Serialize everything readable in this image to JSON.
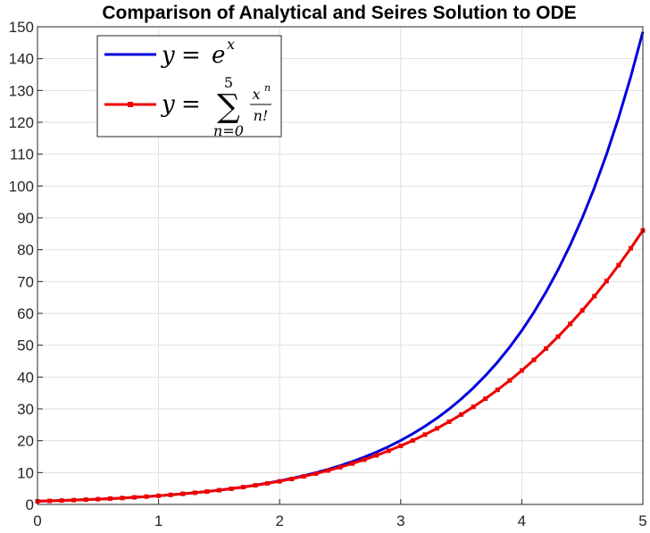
{
  "chart_data": {
    "type": "line",
    "title": "Comparison of Analytical and Seires Solution to ODE",
    "xlabel": "",
    "ylabel": "",
    "xlim": [
      0,
      5
    ],
    "ylim": [
      0,
      150
    ],
    "xticks": [
      0,
      1,
      2,
      3,
      4,
      5
    ],
    "yticks": [
      0,
      10,
      20,
      30,
      40,
      50,
      60,
      70,
      80,
      90,
      100,
      110,
      120,
      130,
      140,
      150
    ],
    "grid": true,
    "legend_position": "top-left",
    "x": [
      0,
      0.1,
      0.2,
      0.3,
      0.4,
      0.5,
      0.6,
      0.7,
      0.8,
      0.9,
      1.0,
      1.1,
      1.2,
      1.3,
      1.4,
      1.5,
      1.6,
      1.7,
      1.8,
      1.9,
      2.0,
      2.1,
      2.2,
      2.3,
      2.4,
      2.5,
      2.6,
      2.7,
      2.8,
      2.9,
      3.0,
      3.1,
      3.2,
      3.3,
      3.4,
      3.5,
      3.6,
      3.7,
      3.8,
      3.9,
      4.0,
      4.1,
      4.2,
      4.3,
      4.4,
      4.5,
      4.6,
      4.7,
      4.8,
      4.9,
      5.0
    ],
    "series": [
      {
        "legend": {
          "lhs": "y",
          "eq": "=",
          "base": "e",
          "exp": "x"
        },
        "color": "#0000dd",
        "marker": "none",
        "values": [
          1.0,
          1.105,
          1.221,
          1.35,
          1.492,
          1.649,
          1.822,
          2.014,
          2.226,
          2.46,
          2.718,
          3.004,
          3.32,
          3.669,
          4.055,
          4.482,
          4.953,
          5.474,
          6.05,
          6.686,
          7.389,
          8.166,
          9.025,
          9.974,
          11.023,
          12.182,
          13.464,
          14.88,
          16.445,
          18.174,
          20.086,
          22.198,
          24.533,
          27.113,
          29.964,
          33.115,
          36.598,
          40.447,
          44.701,
          49.402,
          54.598,
          60.34,
          66.686,
          73.7,
          81.451,
          90.017,
          99.484,
          109.947,
          121.51,
          134.29,
          148.413
        ]
      },
      {
        "legend": {
          "lhs": "y",
          "eq": "=",
          "upper": "5",
          "lower": "n=0",
          "num": "x",
          "num_exp": "n",
          "den": "n!"
        },
        "color": "#ee0000",
        "marker": "square",
        "values": [
          1.0,
          1.105,
          1.221,
          1.35,
          1.492,
          1.649,
          1.822,
          2.014,
          2.226,
          2.459,
          2.717,
          3.002,
          3.317,
          3.664,
          4.047,
          4.469,
          4.933,
          5.443,
          6.004,
          6.62,
          7.267,
          8.006,
          8.813,
          9.694,
          10.654,
          11.699,
          12.835,
          14.069,
          15.406,
          16.854,
          18.4,
          20.092,
          21.913,
          23.873,
          25.976,
          28.232,
          30.647,
          33.229,
          35.987,
          38.928,
          42.067,
          45.4,
          48.944,
          52.703,
          56.692,
          60.919,
          65.395,
          70.133,
          75.143,
          80.438,
          86.042
        ]
      }
    ]
  }
}
